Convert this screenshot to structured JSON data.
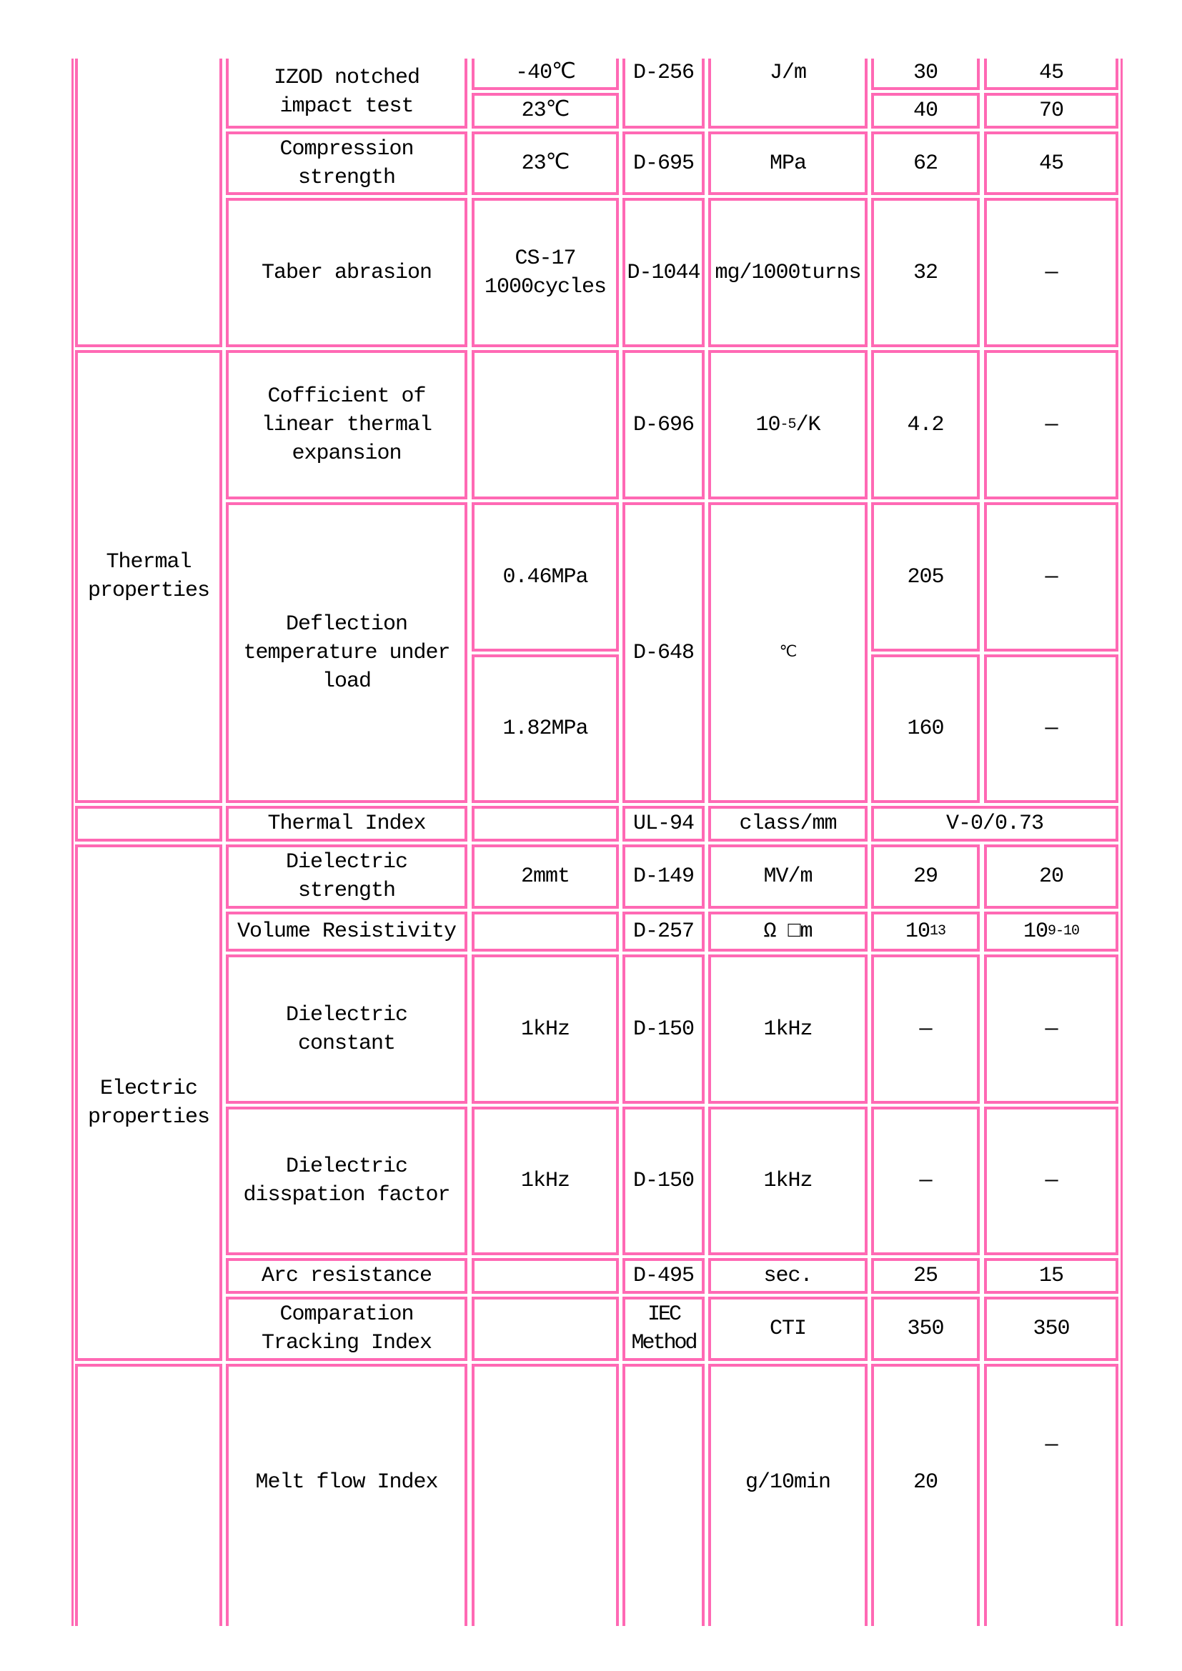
{
  "border_color": "#ff69b4",
  "groups": [
    "",
    "Thermal\nproperties",
    "",
    "Electric\nproperties",
    ""
  ],
  "rows": {
    "izod": {
      "property": "IZOD notched\nimpact test",
      "conditions": [
        "-40℃",
        "23℃"
      ],
      "method": "D-256",
      "unit": "J/m",
      "v1": [
        "30",
        "40"
      ],
      "v2": [
        "45",
        "70"
      ]
    },
    "compression": {
      "property": "Compression\nstrength",
      "condition": "23℃",
      "method": "D-695",
      "unit": "MPa",
      "v1": "62",
      "v2": "45"
    },
    "taber": {
      "property": "Taber abrasion",
      "condition": "CS-17\n1000cycles",
      "method": "D-1044",
      "unit": "mg/1000turns",
      "v1": "32",
      "v2": "—"
    },
    "cte": {
      "property": "Cofficient of\nlinear thermal\nexpansion",
      "condition": "",
      "method": "D-696",
      "unit_base": "10",
      "unit_sup": "-5",
      "unit_rest": "/K",
      "v1": "4.2",
      "v2": "—"
    },
    "deflection": {
      "property": "Deflection\ntemperature under\nload",
      "conditions": [
        "0.46MPa",
        "1.82MPa"
      ],
      "method": "D-648",
      "unit": "℃",
      "v1": [
        "205",
        "160"
      ],
      "v2": [
        "—",
        "—"
      ]
    },
    "thermal_index": {
      "property": "Thermal Index",
      "condition": "",
      "method": "UL-94",
      "unit": "class/mm",
      "value": "V-0/0.73"
    },
    "dielectric_strength": {
      "property": "Dielectric\nstrength",
      "condition": "2mmt",
      "method": "D-149",
      "unit": "MV/m",
      "v1": "29",
      "v2": "20"
    },
    "volume_resistivity": {
      "property": "Volume Resistivity",
      "condition": "",
      "method": "D-257",
      "unit": "Ω □m",
      "v1_base": "10",
      "v1_sup": "13",
      "v2_base": "10",
      "v2_sup": "9-10"
    },
    "dielectric_constant": {
      "property": "Dielectric\nconstant",
      "condition": "1kHz",
      "method": "D-150",
      "unit": "1kHz",
      "v1": "—",
      "v2": "—"
    },
    "dissipation": {
      "property": "Dielectric\ndisspation factor",
      "condition": "1kHz",
      "method": "D-150",
      "unit": "1kHz",
      "v1": "—",
      "v2": "—"
    },
    "arc": {
      "property": "Arc resistance",
      "condition": "",
      "method": "D-495",
      "unit": "sec.",
      "v1": "25",
      "v2": "15"
    },
    "cti": {
      "property": "Comparation\nTracking Index",
      "condition": "",
      "method": "IEC\nMethod",
      "unit": "CTI",
      "v1": "350",
      "v2": "350"
    },
    "melt": {
      "property": "Melt flow Index",
      "condition": "",
      "method": "",
      "unit": "g/10min",
      "v1": "20",
      "v2": "—"
    }
  }
}
